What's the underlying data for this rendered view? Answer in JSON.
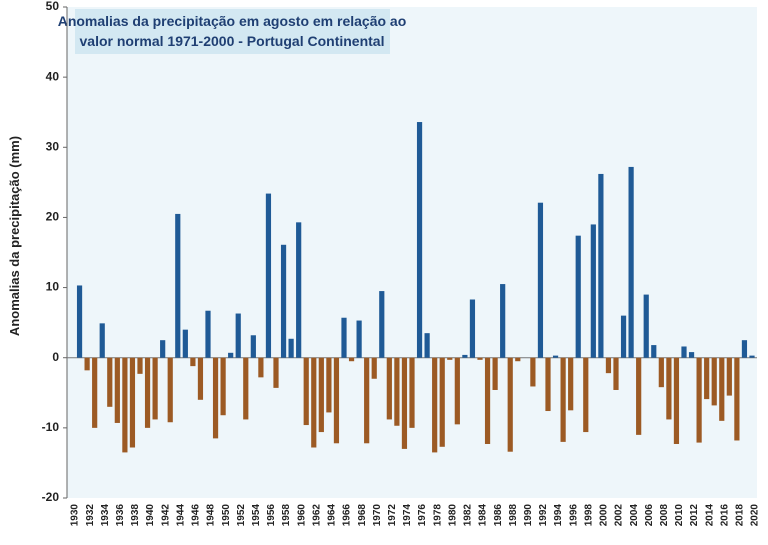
{
  "chart_data": {
    "type": "bar",
    "title": [
      "Anomalias da precipitação em agosto em relação ao",
      "valor normal   1971-2000 - Portugal Continental"
    ],
    "y_label": "Anomalias da precipitação (mm)",
    "categories": [
      "1930",
      null,
      "1932",
      null,
      "1934",
      null,
      "1936",
      null,
      "1938",
      null,
      "1940",
      null,
      "1942",
      null,
      "1944",
      null,
      "1946",
      null,
      "1948",
      null,
      "1950",
      null,
      "1952",
      null,
      "1954",
      null,
      "1956",
      null,
      "1958",
      null,
      "1960",
      null,
      "1962",
      null,
      "1964",
      null,
      "1966",
      null,
      "1968",
      null,
      "1970",
      null,
      "1972",
      null,
      "1974",
      null,
      "1976",
      null,
      "1978",
      null,
      "1980",
      null,
      "1982",
      null,
      "1984",
      null,
      "1986",
      null,
      "1988",
      null,
      "1990",
      null,
      "1992",
      null,
      "1994",
      null,
      "1996",
      null,
      "1998",
      null,
      "2000",
      null,
      "2002",
      null,
      "2004",
      null,
      "2006",
      null,
      "2008",
      null,
      "2010",
      null,
      "2012",
      null,
      "2014",
      null,
      "2016",
      null,
      "2018",
      null,
      "2020"
    ],
    "values": [
      0,
      10.3,
      -1.8,
      -10,
      4.9,
      -7,
      -9.3,
      -13.5,
      -12.8,
      -2.3,
      -10,
      -8.8,
      2.5,
      -9.2,
      20.5,
      4,
      -1.2,
      -6,
      6.7,
      -11.5,
      -8.2,
      0.7,
      6.3,
      -8.8,
      3.2,
      -2.8,
      23.4,
      -4.3,
      16.1,
      2.7,
      19.3,
      -9.6,
      -12.8,
      -10.6,
      -7.8,
      -12.2,
      5.7,
      -0.5,
      5.3,
      -12.2,
      -3,
      9.5,
      -8.8,
      -9.7,
      -13,
      -10,
      33.6,
      3.5,
      -13.5,
      -12.7,
      -0.3,
      -9.5,
      0.4,
      8.3,
      -0.3,
      -12.3,
      -4.6,
      10.5,
      -13.4,
      -0.5,
      0,
      -4.1,
      22.1,
      -7.6,
      0.3,
      -12,
      -7.5,
      17.4,
      -10.6,
      19,
      26.2,
      -2.2,
      -4.6,
      6,
      27.2,
      -11,
      9,
      1.8,
      -4.2,
      -8.8,
      -12.3,
      1.6,
      0.8,
      -12.1,
      -5.9,
      -6.8,
      -9,
      -5.4,
      -11.8,
      2.5,
      0.3
    ],
    "positive_color": "#1f5a96",
    "negative_color": "#9c5a24",
    "ylim": [
      -20,
      50
    ],
    "yticks": [
      -20,
      -10,
      0,
      10,
      20,
      30,
      40,
      50
    ]
  }
}
